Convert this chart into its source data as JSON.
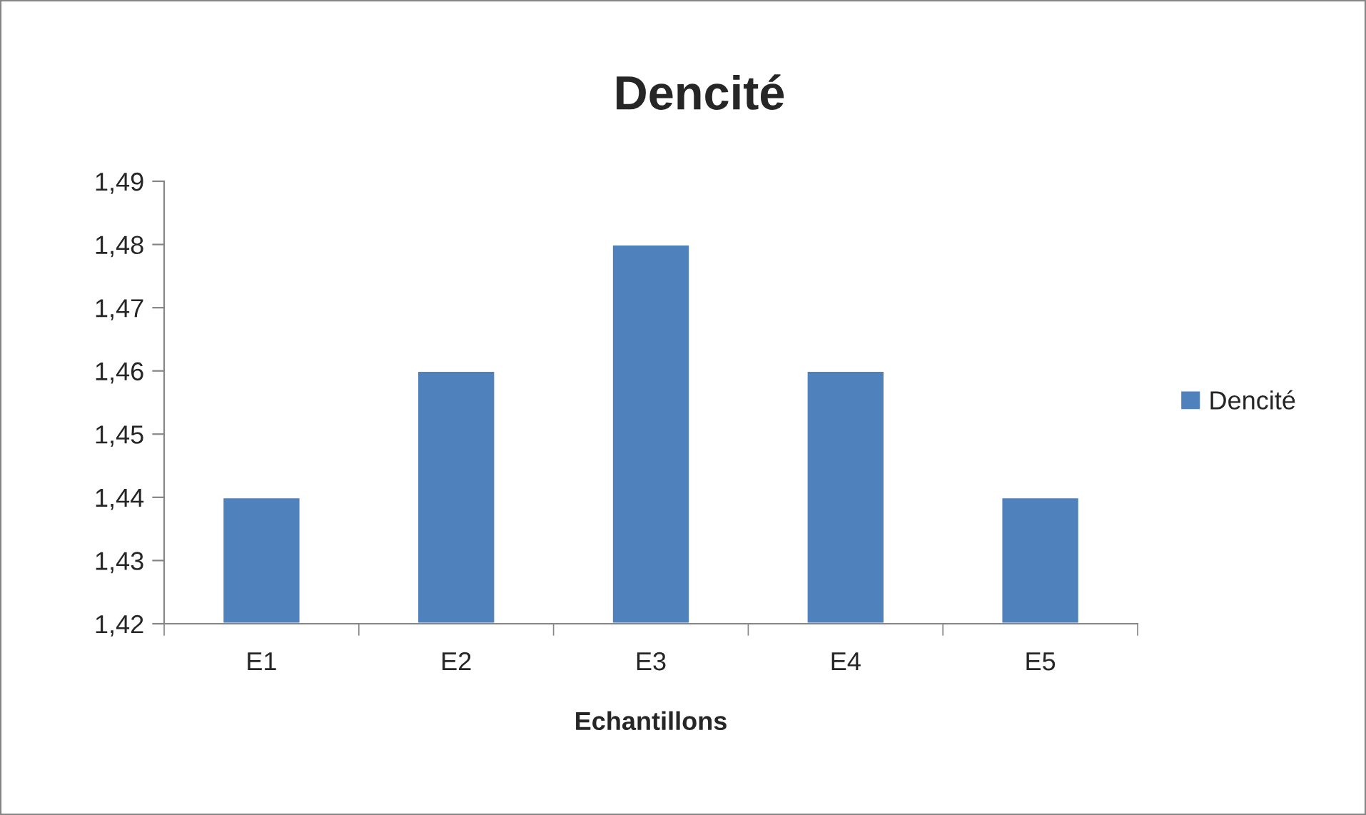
{
  "chart_data": {
    "type": "bar",
    "title": "Dencité",
    "xlabel": "Echantillons",
    "categories": [
      "E1",
      "E2",
      "E3",
      "E4",
      "E5"
    ],
    "series": [
      {
        "name": "Dencité",
        "color": "#4f81bd",
        "values": [
          1.44,
          1.46,
          1.48,
          1.46,
          1.44
        ]
      }
    ],
    "ylim": [
      1.42,
      1.49
    ],
    "yticks": [
      {
        "value": 1.42,
        "label": "1,42"
      },
      {
        "value": 1.43,
        "label": "1,43"
      },
      {
        "value": 1.44,
        "label": "1,44"
      },
      {
        "value": 1.45,
        "label": "1,45"
      },
      {
        "value": 1.46,
        "label": "1,46"
      },
      {
        "value": 1.47,
        "label": "1,47"
      },
      {
        "value": 1.48,
        "label": "1,48"
      },
      {
        "value": 1.49,
        "label": "1,49"
      }
    ],
    "grid": false,
    "legend": "right"
  }
}
